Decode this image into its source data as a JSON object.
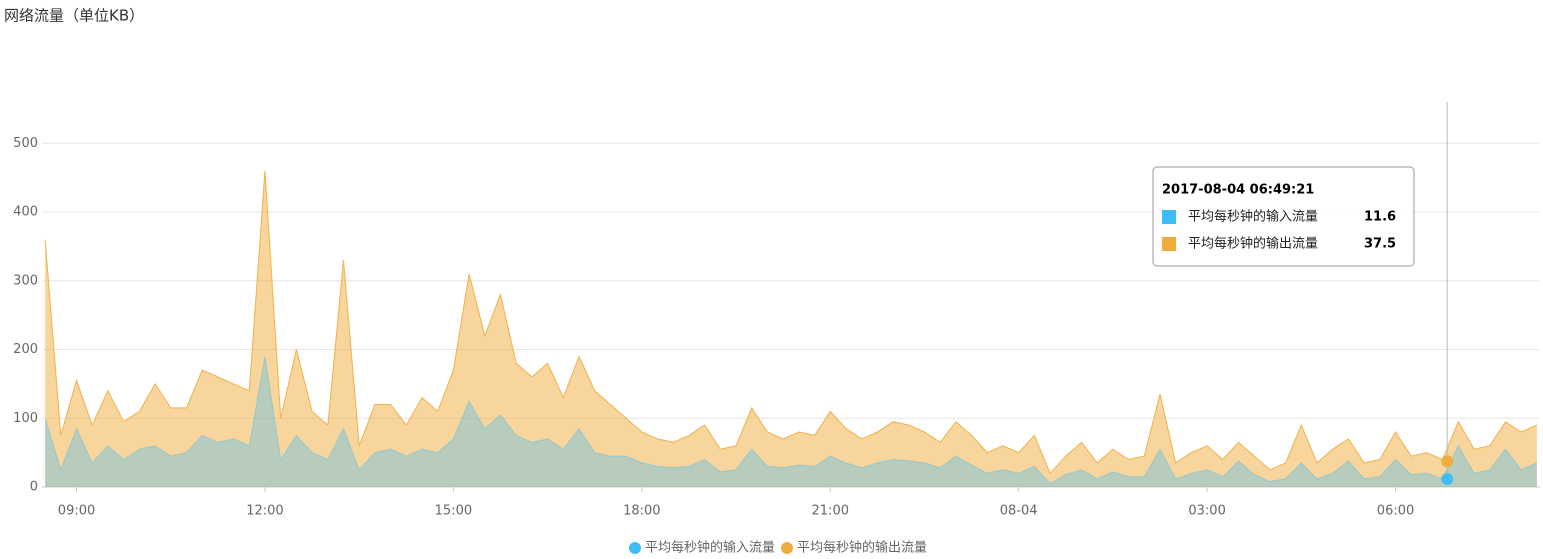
{
  "chart_data": {
    "type": "area",
    "title": "网络流量（单位KB）",
    "x": [
      8.5,
      8.75,
      9,
      9.25,
      9.5,
      9.75,
      10,
      10.25,
      10.5,
      10.75,
      11,
      11.25,
      11.5,
      11.75,
      12,
      12.25,
      12.5,
      12.75,
      13,
      13.25,
      13.5,
      13.75,
      14,
      14.25,
      14.5,
      14.75,
      15,
      15.25,
      15.5,
      15.75,
      16,
      16.25,
      16.5,
      16.75,
      17,
      17.25,
      17.5,
      17.75,
      18,
      18.25,
      18.5,
      18.75,
      19,
      19.25,
      19.5,
      19.75,
      20,
      20.25,
      20.5,
      20.75,
      21,
      21.25,
      21.5,
      21.75,
      22,
      22.25,
      22.5,
      22.75,
      23,
      23.25,
      23.5,
      23.75,
      24,
      24.25,
      24.5,
      24.75,
      25,
      25.25,
      25.5,
      25.75,
      26,
      26.25,
      26.5,
      26.75,
      27,
      27.25,
      27.5,
      27.75,
      28,
      28.25,
      28.5,
      28.75,
      29,
      29.25,
      29.5,
      29.75,
      30,
      30.25,
      30.5,
      30.75,
      31,
      31.25,
      31.5,
      31.75,
      32,
      32.25
    ],
    "series": [
      {
        "name": "平均每秒钟的输入流量",
        "color": "#3ebdf6",
        "values": [
          100,
          25,
          85,
          35,
          60,
          40,
          55,
          60,
          45,
          50,
          75,
          65,
          70,
          60,
          190,
          40,
          75,
          50,
          40,
          85,
          25,
          50,
          55,
          45,
          55,
          50,
          70,
          125,
          85,
          105,
          75,
          65,
          70,
          55,
          85,
          50,
          45,
          45,
          35,
          30,
          28,
          30,
          40,
          22,
          25,
          55,
          30,
          28,
          32,
          30,
          45,
          35,
          28,
          35,
          40,
          38,
          35,
          28,
          45,
          32,
          20,
          25,
          20,
          30,
          5,
          18,
          25,
          12,
          22,
          15,
          15,
          55,
          12,
          20,
          25,
          15,
          38,
          18,
          8,
          12,
          35,
          12,
          20,
          38,
          12,
          15,
          40,
          18,
          20,
          12,
          60,
          20,
          25,
          55,
          25,
          35
        ]
      },
      {
        "name": "平均每秒钟的输出流量",
        "color": "#f0ac3c",
        "values": [
          360,
          75,
          155,
          90,
          140,
          95,
          110,
          150,
          115,
          115,
          170,
          160,
          150,
          140,
          460,
          100,
          200,
          110,
          90,
          330,
          60,
          120,
          120,
          90,
          130,
          110,
          170,
          310,
          220,
          280,
          180,
          160,
          180,
          130,
          190,
          140,
          120,
          100,
          80,
          70,
          65,
          75,
          90,
          55,
          60,
          115,
          80,
          70,
          80,
          75,
          110,
          85,
          70,
          80,
          95,
          90,
          80,
          65,
          95,
          75,
          50,
          60,
          50,
          75,
          20,
          45,
          65,
          35,
          55,
          40,
          45,
          135,
          35,
          50,
          60,
          40,
          65,
          45,
          25,
          35,
          90,
          35,
          55,
          70,
          35,
          40,
          80,
          45,
          50,
          40,
          95,
          55,
          60,
          95,
          80,
          90
        ]
      }
    ],
    "xlim": [
      8.45,
      32.3
    ],
    "xticks": [
      {
        "value": 9,
        "label": "09:00"
      },
      {
        "value": 12,
        "label": "12:00"
      },
      {
        "value": 15,
        "label": "15:00"
      },
      {
        "value": 18,
        "label": "18:00"
      },
      {
        "value": 21,
        "label": "21:00"
      },
      {
        "value": 24,
        "label": "08-04"
      },
      {
        "value": 27,
        "label": "03:00"
      },
      {
        "value": 30,
        "label": "06:00"
      }
    ],
    "ylim": [
      0,
      560
    ],
    "yticks": [
      0,
      100,
      200,
      300,
      400,
      500
    ],
    "grid": true,
    "legend": "bottom",
    "tooltip": {
      "x": 30.8225,
      "title": "2017-08-04 06:49:21",
      "values": [
        11.6,
        37.5
      ]
    }
  }
}
